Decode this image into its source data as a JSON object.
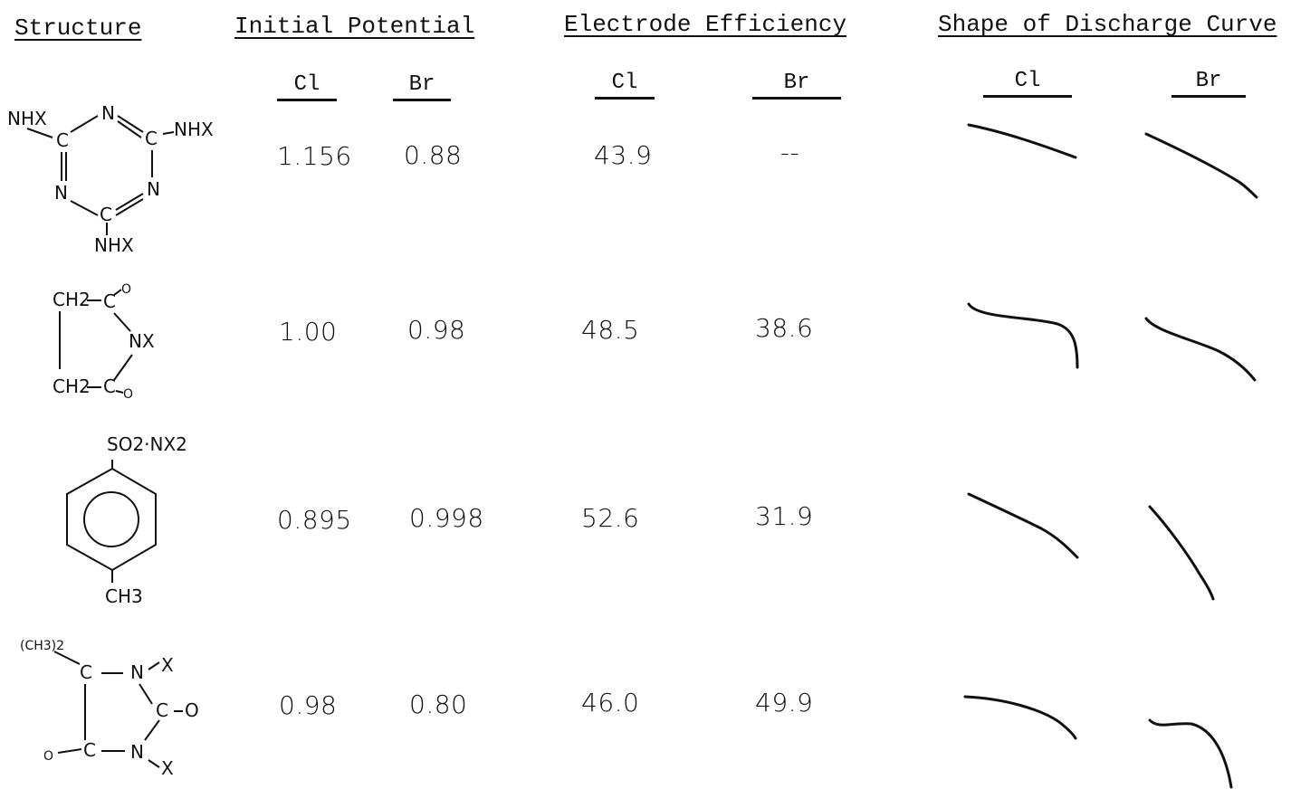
{
  "headers": {
    "structure": "Structure",
    "initial_potential": "Initial Potential",
    "electrode_efficiency": "Electrode Efficiency",
    "discharge_curve": "Shape of Discharge Curve"
  },
  "subheaders": {
    "ip_cl": "Cl",
    "ip_br": "Br",
    "ee_cl": "Cl",
    "ee_br": "Br",
    "dc_cl": "Cl",
    "dc_br": "Br"
  },
  "rows": [
    {
      "structure_labels": [
        "NHX",
        "N",
        "C",
        "C",
        "NHX",
        "N",
        "N",
        "C",
        "NHX"
      ],
      "ip_cl": "1.156",
      "ip_br": "0.88",
      "ee_cl": "43.9",
      "ee_br": "--"
    },
    {
      "structure_labels": [
        "CH2",
        "C",
        "O",
        "NX",
        "CH2",
        "C",
        "O"
      ],
      "ip_cl": "1.00",
      "ip_br": "0.98",
      "ee_cl": "48.5",
      "ee_br": "38.6"
    },
    {
      "structure_labels": [
        "SO2·NX2",
        "CH3"
      ],
      "ip_cl": "0.895",
      "ip_br": "0.998",
      "ee_cl": "52.6",
      "ee_br": "31.9"
    },
    {
      "structure_labels": [
        "(CH3)2",
        "C",
        "N",
        "X",
        "C",
        "O",
        "O",
        "C",
        "N",
        "X"
      ],
      "ip_cl": "0.98",
      "ip_br": "0.80",
      "ee_cl": "46.0",
      "ee_br": "49.9"
    }
  ]
}
